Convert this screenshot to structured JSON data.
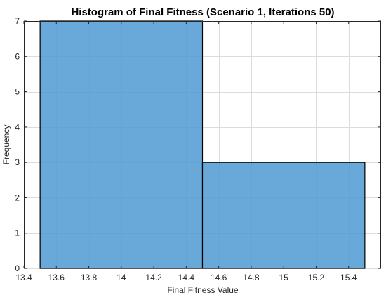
{
  "chart_data": {
    "type": "histogram",
    "title": "Histogram of Final Fitness (Scenario 1, Iterations 50)",
    "xlabel": "Final Fitness Value",
    "ylabel": "Frequency",
    "xlim": [
      13.4,
      15.6
    ],
    "ylim": [
      0,
      7
    ],
    "xticks": [
      "13.4",
      "13.6",
      "13.8",
      "14",
      "14.2",
      "14.4",
      "14.6",
      "14.8",
      "15",
      "15.2",
      "15.4"
    ],
    "xtick_values": [
      13.4,
      13.6,
      13.8,
      14.0,
      14.2,
      14.4,
      14.6,
      14.8,
      15.0,
      15.2,
      15.4
    ],
    "yticks": [
      "0",
      "1",
      "2",
      "3",
      "4",
      "5",
      "6",
      "7"
    ],
    "ytick_values": [
      0,
      1,
      2,
      3,
      4,
      5,
      6,
      7
    ],
    "bins": [
      {
        "start": 13.5,
        "end": 14.5,
        "count": 7
      },
      {
        "start": 14.5,
        "end": 15.5,
        "count": 3
      }
    ],
    "grid": true,
    "bar_color": "#4f9ad4",
    "bar_edge_color": "#000000"
  }
}
